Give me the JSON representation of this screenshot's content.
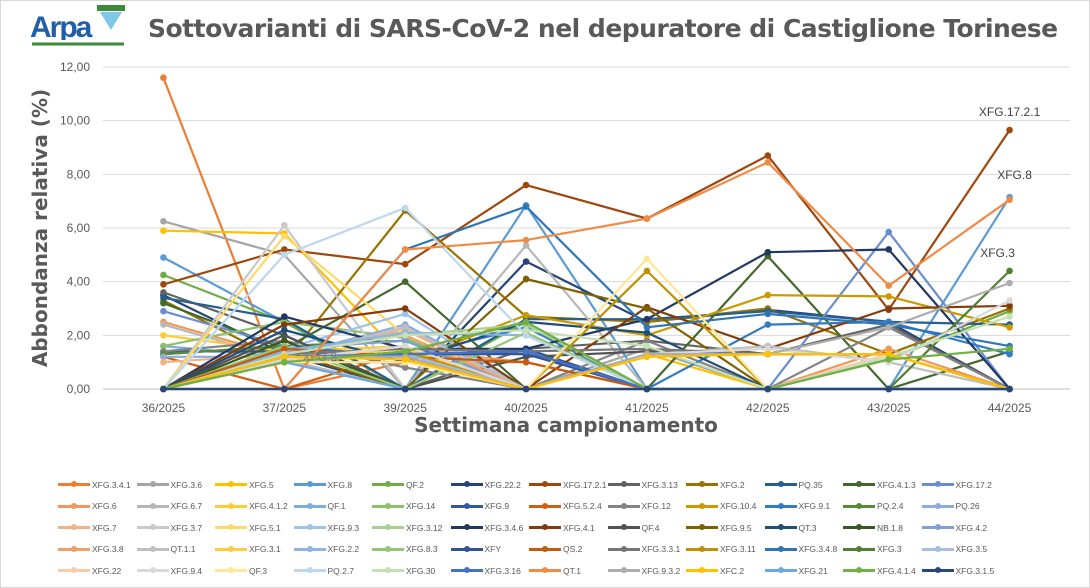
{
  "logo": {
    "text": "Arpa",
    "region": "PIEMONTE",
    "subtitle": "Agenzia Regionale per la Protezione Ambientale"
  },
  "chart_data": {
    "type": "line",
    "title": "Sottovarianti di SARS-CoV-2 nel depuratore di Castiglione Torinese",
    "xlabel": "Settimana campionamento",
    "ylabel": "Abbondanza relativa (%)",
    "ylim": [
      0,
      12
    ],
    "yticks": [
      "0,00",
      "2,00",
      "4,00",
      "6,00",
      "8,00",
      "10,00",
      "12,00"
    ],
    "grid": true,
    "legend_position": "bottom",
    "categories": [
      "36/2025",
      "37/2025",
      "39/2025",
      "40/2025",
      "41/2025",
      "42/2025",
      "43/2025",
      "44/2025"
    ],
    "series": [
      {
        "name": "XFG.3.4.1",
        "color": "#ED7D31",
        "values": [
          11.6,
          0,
          1.0,
          1.0,
          0,
          0,
          0,
          0
        ]
      },
      {
        "name": "XFG.3.6",
        "color": "#A5A5A5",
        "values": [
          6.25,
          5.0,
          0,
          0,
          1.5,
          0,
          0,
          0
        ]
      },
      {
        "name": "XFG.5",
        "color": "#FFC000",
        "values": [
          5.9,
          5.8,
          1.1,
          0,
          1.3,
          0,
          0,
          0
        ]
      },
      {
        "name": "XFG.8",
        "color": "#5B9BD5",
        "values": [
          4.9,
          2.5,
          0,
          6.85,
          0,
          0,
          0,
          7.15
        ]
      },
      {
        "name": "QF.2",
        "color": "#70AD47",
        "values": [
          4.25,
          2.5,
          0,
          2.5,
          0,
          0,
          1.1,
          2.9
        ]
      },
      {
        "name": "XFG.22.2",
        "color": "#264478",
        "values": [
          3.5,
          1.3,
          0,
          4.75,
          2.5,
          2.95,
          2.5,
          0
        ]
      },
      {
        "name": "XFG.17.2.1",
        "color": "#9E480E",
        "values": [
          3.9,
          5.2,
          4.65,
          7.6,
          6.35,
          8.7,
          2.95,
          9.65
        ]
      },
      {
        "name": "XFG.3.13",
        "color": "#636363",
        "values": [
          3.6,
          2.0,
          0,
          1.5,
          1.8,
          1.3,
          2.4,
          0
        ]
      },
      {
        "name": "XFG.2",
        "color": "#997300",
        "values": [
          3.3,
          1.0,
          6.65,
          2.7,
          2.5,
          3.0,
          1.3,
          3.0
        ]
      },
      {
        "name": "PQ.35",
        "color": "#255E91",
        "values": [
          3.4,
          2.6,
          0,
          2.6,
          2.6,
          2.9,
          2.5,
          2.4
        ]
      },
      {
        "name": "XFG.4.1.3",
        "color": "#43682B",
        "values": [
          3.2,
          1.5,
          4.0,
          0,
          0,
          4.95,
          0,
          1.4
        ]
      },
      {
        "name": "XFG.17.2",
        "color": "#698ED0",
        "values": [
          2.9,
          1.6,
          1.8,
          0,
          0,
          0,
          5.85,
          0
        ]
      },
      {
        "name": "XFG.6",
        "color": "#F1975A",
        "values": [
          2.5,
          1.2,
          1.5,
          1.0,
          0,
          0,
          1.5,
          0
        ]
      },
      {
        "name": "XFG.6.7",
        "color": "#B7B7B7",
        "values": [
          2.4,
          1.1,
          0,
          5.35,
          0,
          0,
          0,
          0
        ]
      },
      {
        "name": "XFG.4.1.2",
        "color": "#FFCD33",
        "values": [
          2.0,
          1.4,
          1.6,
          0,
          0,
          0,
          0,
          0
        ]
      },
      {
        "name": "QF.1",
        "color": "#7CAFDD",
        "values": [
          1.6,
          1.2,
          2.1,
          2.0,
          0,
          0,
          0,
          0
        ]
      },
      {
        "name": "XFG.14",
        "color": "#8CC168",
        "values": [
          1.6,
          2.5,
          1.9,
          0,
          0,
          0,
          0,
          0
        ]
      },
      {
        "name": "XFG.9",
        "color": "#335AA1",
        "values": [
          1.4,
          1.4,
          1.2,
          1.5,
          0,
          0,
          0,
          0
        ]
      },
      {
        "name": "XFG.5.2.4",
        "color": "#D26012",
        "values": [
          1.2,
          0,
          1.4,
          1.3,
          0,
          0,
          0,
          0
        ]
      },
      {
        "name": "XFG.12",
        "color": "#848484",
        "values": [
          1.4,
          1.8,
          0.8,
          0,
          1.8,
          0,
          2.3,
          0
        ]
      },
      {
        "name": "XFG.10.4",
        "color": "#CC9A00",
        "values": [
          0,
          1.0,
          1.0,
          2.75,
          2.0,
          3.5,
          3.45,
          2.3
        ]
      },
      {
        "name": "XFG.9.1",
        "color": "#327DC2",
        "values": [
          1.3,
          1.6,
          1.2,
          2.3,
          0,
          2.4,
          2.5,
          1.3
        ]
      },
      {
        "name": "PQ.2.4",
        "color": "#5A8A39",
        "values": [
          1.3,
          1.6,
          1.8,
          0,
          0,
          0,
          0,
          0
        ]
      },
      {
        "name": "PQ.26",
        "color": "#8FAADC",
        "values": [
          1.2,
          1.2,
          2.4,
          0,
          0,
          0,
          0,
          0
        ]
      },
      {
        "name": "XFG.7",
        "color": "#F4B183",
        "values": [
          1.0,
          1.3,
          2.2,
          0,
          0,
          0,
          0,
          0
        ]
      },
      {
        "name": "XFG.3.7",
        "color": "#C9C9C9",
        "values": [
          0,
          6.1,
          0,
          0,
          0,
          0,
          0,
          0
        ]
      },
      {
        "name": "XFG.5.1",
        "color": "#FFD966",
        "values": [
          0,
          5.7,
          2.0,
          0,
          0,
          0,
          0,
          0
        ]
      },
      {
        "name": "XFG.9.3",
        "color": "#9DC3E6",
        "values": [
          0,
          1.5,
          2.8,
          0,
          0,
          0,
          0,
          0
        ]
      },
      {
        "name": "XFG.3.12",
        "color": "#A9D18E",
        "values": [
          0,
          1.4,
          2.0,
          2.4,
          0,
          0,
          0,
          0
        ]
      },
      {
        "name": "XFG.3.4.6",
        "color": "#203864",
        "values": [
          0,
          2.7,
          1.5,
          1.5,
          2.6,
          5.1,
          5.2,
          0
        ]
      },
      {
        "name": "XFG.4.1",
        "color": "#843C0C",
        "values": [
          0,
          2.4,
          3.0,
          0,
          3.05,
          1.5,
          3.0,
          3.1
        ]
      },
      {
        "name": "QF.4",
        "color": "#525252",
        "values": [
          0,
          2.0,
          0,
          1.2,
          1.4,
          1.3,
          1.3,
          0
        ]
      },
      {
        "name": "XFG.9.5",
        "color": "#7F6000",
        "values": [
          0,
          1.4,
          0,
          4.1,
          3.0,
          0,
          0,
          0
        ]
      },
      {
        "name": "QT.3",
        "color": "#1F4E79",
        "values": [
          0,
          2.2,
          1.0,
          2.5,
          2.1,
          0,
          0,
          0
        ]
      },
      {
        "name": "NB.1.8",
        "color": "#385723",
        "values": [
          0,
          1.8,
          0,
          0,
          0,
          0,
          0,
          0
        ]
      },
      {
        "name": "XFG.4.2",
        "color": "#7F9FD8",
        "values": [
          0,
          1.5,
          1.8,
          0,
          0,
          0,
          0,
          0
        ]
      },
      {
        "name": "XFG.3.8",
        "color": "#F19F66",
        "values": [
          0,
          1.3,
          2.0,
          0,
          0,
          0,
          0,
          0
        ]
      },
      {
        "name": "QT.1.1",
        "color": "#BFBFBF",
        "values": [
          0,
          1.2,
          2.3,
          0,
          1.3,
          1.6,
          1.0,
          0
        ]
      },
      {
        "name": "XFG.3.1",
        "color": "#FFCC3F",
        "values": [
          0,
          1.1,
          1.5,
          0,
          0,
          0,
          0,
          0
        ]
      },
      {
        "name": "XFG.2.2",
        "color": "#8AB6E0",
        "values": [
          0,
          1.4,
          2.1,
          2.0,
          0,
          0,
          0,
          0
        ]
      },
      {
        "name": "XFG.8.3",
        "color": "#94C674",
        "values": [
          0,
          1.6,
          0,
          2.1,
          0,
          0,
          0,
          0
        ]
      },
      {
        "name": "XFY",
        "color": "#2F5597",
        "values": [
          0,
          1.2,
          1.3,
          1.3,
          0,
          0,
          0,
          0
        ]
      },
      {
        "name": "QS.2",
        "color": "#C55A11",
        "values": [
          0,
          1.5,
          1.2,
          1.0,
          0,
          0,
          0,
          0
        ]
      },
      {
        "name": "XFG.3.3.1",
        "color": "#767676",
        "values": [
          0,
          1.3,
          1.5,
          1.4,
          1.5,
          1.3,
          1.3,
          0
        ]
      },
      {
        "name": "XFG.3.11",
        "color": "#BF9000",
        "values": [
          0,
          1.0,
          1.4,
          0,
          4.4,
          0,
          0,
          0
        ]
      },
      {
        "name": "XFG.3.4.8",
        "color": "#2E75B6",
        "values": [
          0,
          0,
          5.2,
          6.8,
          2.3,
          2.8,
          2.4,
          1.6
        ]
      },
      {
        "name": "XFG.3",
        "color": "#507E32",
        "values": [
          0,
          0,
          0,
          0,
          0,
          0,
          0,
          4.4
        ]
      },
      {
        "name": "XFG.3.5",
        "color": "#A6BDE6",
        "values": [
          0,
          1.0,
          1.3,
          0,
          0,
          0,
          0,
          0
        ]
      },
      {
        "name": "XFG.22",
        "color": "#F8CBAD",
        "values": [
          0,
          1.0,
          1.6,
          0,
          0,
          0,
          1.3,
          0
        ]
      },
      {
        "name": "XFG.9.4",
        "color": "#D9D9D9",
        "values": [
          0,
          1.1,
          1.6,
          0,
          1.3,
          1.5,
          1.0,
          3.3
        ]
      },
      {
        "name": "QF.3",
        "color": "#FFE699",
        "values": [
          0,
          1.0,
          1.0,
          0,
          4.85,
          0,
          0,
          0
        ]
      },
      {
        "name": "PQ.2.7",
        "color": "#BDD7EE",
        "values": [
          0,
          5.0,
          6.75,
          2.0,
          0,
          0,
          0,
          0
        ]
      },
      {
        "name": "XFG.30",
        "color": "#C5E0B4",
        "values": [
          0,
          1.3,
          2.0,
          2.2,
          1.6,
          0,
          1.2,
          2.7
        ]
      },
      {
        "name": "XFG.3.16",
        "color": "#4472C4",
        "values": [
          0,
          1.2,
          1.3,
          1.4,
          0,
          0,
          0,
          0
        ]
      },
      {
        "name": "QT.1",
        "color": "#F08B45",
        "values": [
          0,
          0,
          5.2,
          5.55,
          6.35,
          8.45,
          3.85,
          7.05
        ]
      },
      {
        "name": "XFG.9.3.2",
        "color": "#ADADAD",
        "values": [
          0,
          1.2,
          1.2,
          0,
          1.3,
          1.3,
          2.3,
          3.95
        ]
      },
      {
        "name": "XFC.2",
        "color": "#FFC000",
        "values": [
          0,
          1.2,
          1.1,
          0,
          1.2,
          1.3,
          1.3,
          0
        ]
      },
      {
        "name": "XFG.21",
        "color": "#6FA8DC",
        "values": [
          0,
          1.0,
          0,
          0,
          0,
          0,
          0,
          0
        ]
      },
      {
        "name": "XFG.4.1.4",
        "color": "#72B043",
        "values": [
          0,
          1.0,
          1.4,
          2.5,
          0,
          0,
          1.1,
          1.5
        ]
      },
      {
        "name": "XFG.3.1.5",
        "color": "#2A4677",
        "values": [
          0,
          0,
          0,
          0,
          0,
          0,
          0,
          0
        ]
      }
    ],
    "annotations": [
      {
        "text": "XFG.17.2.1",
        "series": "XFG.17.2.1",
        "category": "44/2025"
      },
      {
        "text": "XFG.8",
        "series": "XFG.8",
        "category": "44/2025"
      },
      {
        "text": "XFG.3",
        "series": "XFG.3",
        "category": "44/2025"
      },
      {
        "text": "XFG.8",
        "series": "XFG.8",
        "category": "37/2025"
      }
    ]
  }
}
